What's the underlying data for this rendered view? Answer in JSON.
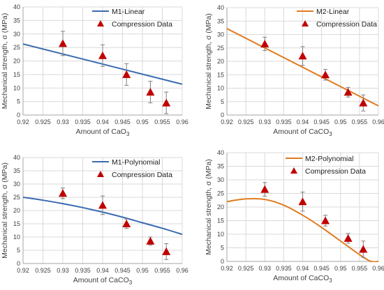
{
  "chart_data": [
    {
      "panel": "top-left",
      "type": "scatter",
      "xlabel": "Amount of CaO3",
      "ylabel": "Mechanical strength, σ (MPa)",
      "xlim": [
        0.92,
        0.96
      ],
      "ylim": [
        0,
        40
      ],
      "x_ticks": [
        0.92,
        0.925,
        0.93,
        0.935,
        0.94,
        0.945,
        0.95,
        0.955,
        0.96
      ],
      "y_ticks": [
        0,
        5,
        10,
        15,
        20,
        25,
        30,
        35,
        40
      ],
      "legend_position": "top-right",
      "model": {
        "name": "M1-Linear",
        "kind": "linear",
        "color": "#3a6bb0",
        "x": [
          0.92,
          0.96
        ],
        "y": [
          26.3,
          11.4
        ]
      },
      "data": {
        "name": "Compression Data",
        "color": "#c00000",
        "points": [
          {
            "x": 0.93,
            "y": 26.5,
            "err": 4.5
          },
          {
            "x": 0.94,
            "y": 22.0,
            "err": 4.0
          },
          {
            "x": 0.946,
            "y": 15.0,
            "err": 4.0
          },
          {
            "x": 0.952,
            "y": 8.5,
            "err": 4.0
          },
          {
            "x": 0.956,
            "y": 4.5,
            "err": 4.0
          }
        ]
      }
    },
    {
      "panel": "top-right",
      "type": "scatter",
      "xlabel": "Amount of CaCO3",
      "ylabel": "Mechanical strength, σ (MPa)",
      "xlim": [
        0.92,
        0.96
      ],
      "ylim": [
        0,
        40
      ],
      "x_ticks": [
        0.92,
        0.925,
        0.93,
        0.935,
        0.94,
        0.945,
        0.95,
        0.955,
        0.96
      ],
      "y_ticks": [
        0,
        5,
        10,
        15,
        20,
        25,
        30,
        35,
        40
      ],
      "legend_position": "top-right",
      "model": {
        "name": "M2-Linear",
        "kind": "linear",
        "color": "#e07b20",
        "x": [
          0.92,
          0.96
        ],
        "y": [
          32.2,
          3.4
        ]
      },
      "data": {
        "name": "Compression Data",
        "color": "#c00000",
        "points": [
          {
            "x": 0.93,
            "y": 26.5,
            "err": 2.5
          },
          {
            "x": 0.94,
            "y": 22.0,
            "err": 3.5
          },
          {
            "x": 0.946,
            "y": 15.0,
            "err": 2.0
          },
          {
            "x": 0.952,
            "y": 8.5,
            "err": 1.8
          },
          {
            "x": 0.956,
            "y": 4.5,
            "err": 3.0
          }
        ]
      }
    },
    {
      "panel": "bottom-left",
      "type": "scatter",
      "xlabel": "Amount of CaCO3",
      "ylabel": "Mechanical strength, σ (MPa)",
      "xlim": [
        0.92,
        0.96
      ],
      "ylim": [
        0,
        40
      ],
      "x_ticks": [
        0.92,
        0.925,
        0.93,
        0.935,
        0.94,
        0.945,
        0.95,
        0.955,
        0.96
      ],
      "y_ticks": [
        0,
        5,
        10,
        15,
        20,
        25,
        30,
        35,
        40
      ],
      "legend_position": "top-right",
      "model": {
        "name": "M1-Polynomial",
        "kind": "curve",
        "color": "#3a6bb0",
        "x": [
          0.92,
          0.925,
          0.93,
          0.935,
          0.94,
          0.945,
          0.95,
          0.955,
          0.96
        ],
        "y": [
          25.0,
          23.9,
          22.6,
          21.1,
          19.4,
          17.5,
          15.4,
          13.3,
          11.0
        ]
      },
      "data": {
        "name": "Compression Data",
        "color": "#c00000",
        "points": [
          {
            "x": 0.93,
            "y": 26.5,
            "err": 2.0
          },
          {
            "x": 0.94,
            "y": 22.0,
            "err": 3.5
          },
          {
            "x": 0.946,
            "y": 15.0,
            "err": 1.8
          },
          {
            "x": 0.952,
            "y": 8.5,
            "err": 1.5
          },
          {
            "x": 0.956,
            "y": 4.5,
            "err": 3.0
          }
        ]
      }
    },
    {
      "panel": "bottom-right",
      "type": "scatter",
      "xlabel": "Amount of CaCO3",
      "ylabel": "Mechanical strength, σ (MPa)",
      "xlim": [
        0.92,
        0.96
      ],
      "ylim": [
        0,
        40
      ],
      "x_ticks": [
        0.92,
        0.925,
        0.93,
        0.935,
        0.94,
        0.945,
        0.95,
        0.955,
        0.96
      ],
      "y_ticks": [
        0,
        5,
        10,
        15,
        20,
        25,
        30,
        35,
        40
      ],
      "legend_position": "top-right",
      "model": {
        "name": "M2-Polynomial",
        "kind": "curve",
        "color": "#e07b20",
        "x": [
          0.92,
          0.925,
          0.93,
          0.935,
          0.94,
          0.945,
          0.95,
          0.955,
          0.958,
          0.96
        ],
        "y": [
          22.0,
          23.0,
          22.8,
          20.7,
          17.0,
          12.5,
          7.5,
          2.5,
          0.0,
          0.0
        ]
      },
      "data": {
        "name": "Compression Data",
        "color": "#c00000",
        "points": [
          {
            "x": 0.93,
            "y": 26.5,
            "err": 2.5
          },
          {
            "x": 0.94,
            "y": 22.0,
            "err": 3.5
          },
          {
            "x": 0.946,
            "y": 15.0,
            "err": 2.0
          },
          {
            "x": 0.952,
            "y": 8.5,
            "err": 1.8
          },
          {
            "x": 0.956,
            "y": 4.5,
            "err": 3.0
          }
        ]
      }
    }
  ]
}
